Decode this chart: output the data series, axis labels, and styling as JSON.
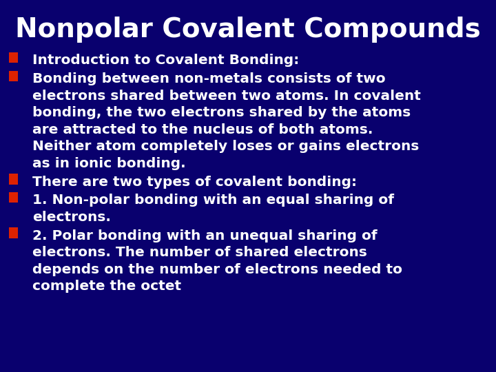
{
  "title": "Nonpolar Covalent Compounds",
  "title_fontsize": 28,
  "title_color": "#FFFFFF",
  "title_fontweight": "bold",
  "background_color": "#09006e",
  "bullet_color": "#DD2200",
  "text_color": "#FFFFFF",
  "text_fontsize": 14.5,
  "text_fontweight": "bold",
  "fig_width": 7.2,
  "fig_height": 5.4,
  "fig_dpi": 100,
  "bullet_items": [
    "Introduction to Covalent Bonding:",
    "Bonding between non-metals consists of two\nelectrons shared between two atoms. In covalent\nbonding, the two electrons shared by the atoms\nare attracted to the nucleus of both atoms.\nNeither atom completely loses or gains electrons\nas in ionic bonding.",
    "There are two types of covalent bonding:",
    "1. Non-polar bonding with an equal sharing of\nelectrons.",
    "2. Polar bonding with an unequal sharing of\nelectrons. The number of shared electrons\ndepends on the number of electrons needed to\ncomplete the octet"
  ]
}
